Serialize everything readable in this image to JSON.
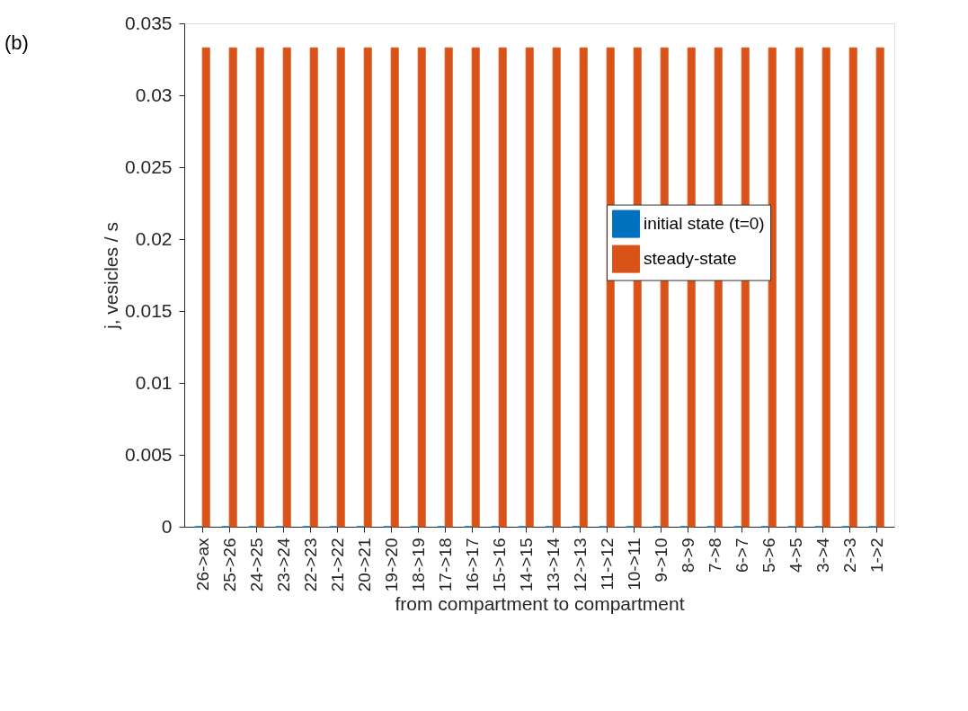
{
  "chart_data": {
    "type": "bar",
    "categories": [
      "26->ax",
      "25->26",
      "24->25",
      "23->24",
      "22->23",
      "21->22",
      "20->21",
      "19->20",
      "18->19",
      "17->18",
      "16->17",
      "15->16",
      "14->15",
      "13->14",
      "12->13",
      "11->12",
      "10->11",
      "9->10",
      "8->9",
      "7->8",
      "6->7",
      "5->6",
      "4->5",
      "3->4",
      "2->3",
      "1->2"
    ],
    "series": [
      {
        "name": "initial state (t=0)",
        "color": "#0072bd",
        "values": [
          0,
          0,
          0,
          0,
          0,
          0,
          0,
          0,
          0,
          0,
          0,
          0,
          0,
          0,
          0,
          0,
          0,
          0,
          0,
          0,
          0,
          0,
          0,
          0,
          0,
          0
        ]
      },
      {
        "name": "steady-state",
        "color": "#d95319",
        "values": [
          0.0333,
          0.0333,
          0.0333,
          0.0333,
          0.0333,
          0.0333,
          0.0333,
          0.0333,
          0.0333,
          0.0333,
          0.0333,
          0.0333,
          0.0333,
          0.0333,
          0.0333,
          0.0333,
          0.0333,
          0.0333,
          0.0333,
          0.0333,
          0.0333,
          0.0333,
          0.0333,
          0.0333,
          0.0333,
          0.0333
        ]
      }
    ],
    "ylim": [
      0,
      0.035
    ],
    "yticks": [
      0,
      0.005,
      0.01,
      0.015,
      0.02,
      0.025,
      0.03,
      0.035
    ],
    "xlabel": "from compartment to compartment",
    "ylabel": "j,  vesicles / s",
    "annotations": [
      "(b)"
    ],
    "legend": "right",
    "grid": false
  }
}
